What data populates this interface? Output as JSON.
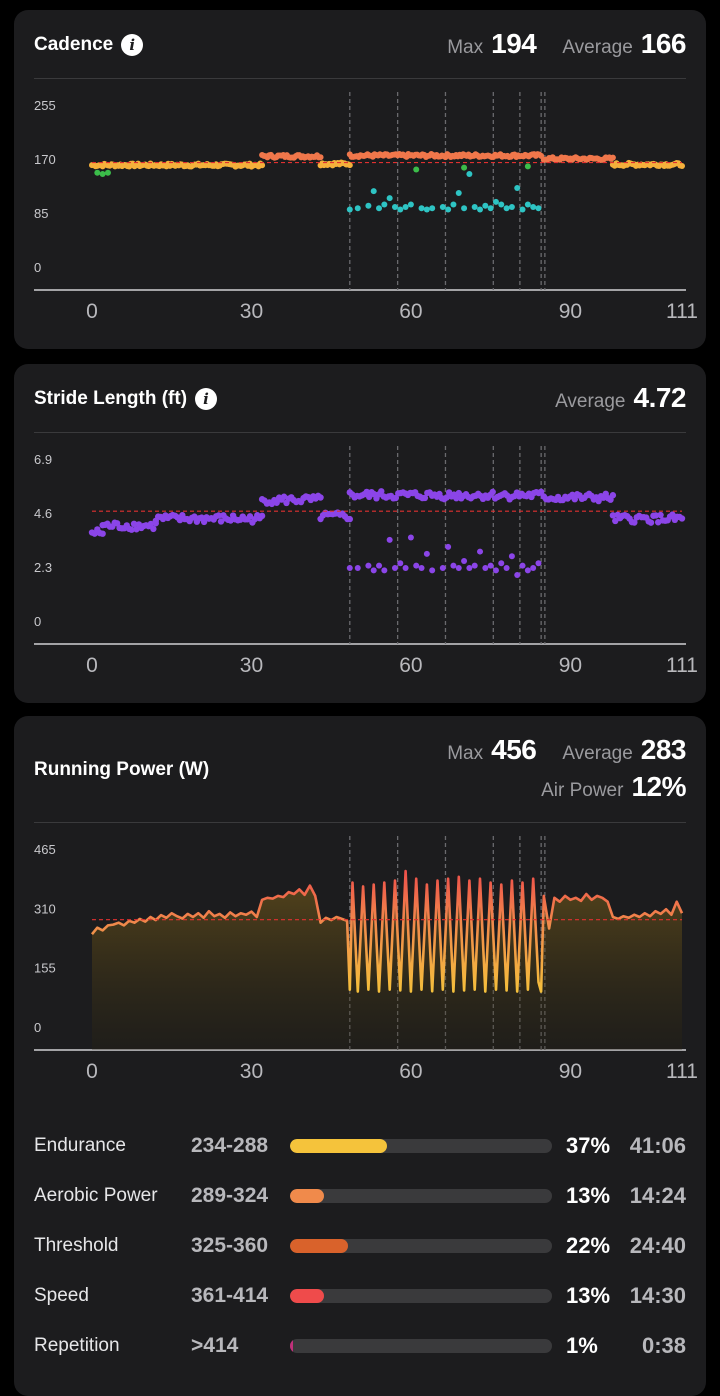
{
  "cadence": {
    "title": "Cadence",
    "stats": [
      {
        "label": "Max",
        "value": "194"
      },
      {
        "label": "Average",
        "value": "166"
      }
    ]
  },
  "stride": {
    "title": "Stride Length (ft)",
    "stats": [
      {
        "label": "Average",
        "value": "4.72"
      }
    ]
  },
  "power": {
    "title": "Running Power (W)",
    "stats": [
      {
        "label": "Max",
        "value": "456"
      },
      {
        "label": "Average",
        "value": "283"
      },
      {
        "label": "Air Power",
        "value": "12%"
      }
    ]
  },
  "zones": [
    {
      "name": "Endurance",
      "range": "234-288",
      "pct": "37%",
      "fraction": 0.37,
      "time": "41:06",
      "color": "#f5c33b"
    },
    {
      "name": "Aerobic Power",
      "range": "289-324",
      "pct": "13%",
      "fraction": 0.13,
      "time": "14:24",
      "color": "#f08a4b"
    },
    {
      "name": "Threshold",
      "range": "325-360",
      "pct": "22%",
      "fraction": 0.22,
      "time": "24:40",
      "color": "#d9622b"
    },
    {
      "name": "Speed",
      "range": "361-414",
      "pct": "13%",
      "fraction": 0.13,
      "time": "14:30",
      "color": "#ef4b4b"
    },
    {
      "name": "Repetition",
      "range": ">414",
      "pct": "1%",
      "fraction": 0.01,
      "time": "0:38",
      "color": "#c0307a"
    }
  ],
  "chart_data": [
    {
      "type": "scatter",
      "name": "cadence",
      "xlim": [
        0,
        111
      ],
      "ylim": [
        0,
        255
      ],
      "xticks": [
        "0",
        "30",
        "60",
        "90",
        "111"
      ],
      "yticks": [
        "255",
        "170",
        "85",
        "0"
      ],
      "reference_line": 166,
      "interval_markers": [
        48.5,
        57.5,
        66.5,
        75.5,
        80.5,
        84.5,
        85.2
      ],
      "colors": {
        "run": "#f5b03b",
        "fast": "#f0774b",
        "walk": "#2ec4c4",
        "low": "#3bbd4a",
        "reference": "#e03030"
      },
      "segments": [
        {
          "x": [
            0,
            32
          ],
          "y": 162,
          "kind": "run"
        },
        {
          "x": [
            32,
            43
          ],
          "y": 176,
          "kind": "fast"
        },
        {
          "x": [
            43,
            48.5
          ],
          "y": 164,
          "kind": "run"
        },
        {
          "x": [
            48.5,
            84.5
          ],
          "y": 177,
          "kind": "fast"
        },
        {
          "x": [
            85,
            98
          ],
          "y": 172,
          "kind": "fast"
        },
        {
          "x": [
            98,
            111
          ],
          "y": 163,
          "kind": "run"
        }
      ],
      "walk_points": [
        [
          48.5,
          92
        ],
        [
          50,
          94
        ],
        [
          52,
          98
        ],
        [
          53,
          121
        ],
        [
          54,
          94
        ],
        [
          55,
          100
        ],
        [
          56,
          110
        ],
        [
          57,
          96
        ],
        [
          58,
          92
        ],
        [
          59,
          96
        ],
        [
          60,
          100
        ],
        [
          62,
          94
        ],
        [
          63,
          92
        ],
        [
          64,
          94
        ],
        [
          66,
          96
        ],
        [
          67,
          92
        ],
        [
          68,
          100
        ],
        [
          69,
          118
        ],
        [
          70,
          94
        ],
        [
          71,
          148
        ],
        [
          72,
          96
        ],
        [
          73,
          92
        ],
        [
          74,
          98
        ],
        [
          75,
          94
        ],
        [
          76,
          104
        ],
        [
          77,
          100
        ],
        [
          78,
          94
        ],
        [
          79,
          96
        ],
        [
          80,
          126
        ],
        [
          81,
          92
        ],
        [
          82,
          100
        ],
        [
          83,
          96
        ],
        [
          84,
          94
        ]
      ],
      "low_points": [
        [
          1,
          150
        ],
        [
          2,
          148
        ],
        [
          3,
          150
        ],
        [
          61,
          155
        ],
        [
          70,
          158
        ],
        [
          82,
          160
        ]
      ]
    },
    {
      "type": "scatter",
      "name": "stride",
      "xlim": [
        0,
        111
      ],
      "ylim": [
        0,
        6.9
      ],
      "xticks": [
        "0",
        "30",
        "60",
        "90",
        "111"
      ],
      "yticks": [
        "6.9",
        "4.6",
        "2.3",
        "0"
      ],
      "reference_line": 4.72,
      "interval_markers": [
        48.5,
        57.5,
        66.5,
        75.5,
        80.5,
        84.5,
        85.2
      ],
      "colors": {
        "points": "#8b45e8",
        "reference": "#e03030"
      },
      "segments": [
        {
          "x": [
            0,
            2
          ],
          "y": 3.8
        },
        {
          "x": [
            2,
            12
          ],
          "y": 4.1
        },
        {
          "x": [
            12,
            32
          ],
          "y": 4.4
        },
        {
          "x": [
            32,
            43
          ],
          "y": 5.2
        },
        {
          "x": [
            43,
            48.5
          ],
          "y": 4.5
        },
        {
          "x": [
            48.5,
            84.5
          ],
          "y": 5.4
        },
        {
          "x": [
            85,
            98
          ],
          "y": 5.3
        },
        {
          "x": [
            98,
            111
          ],
          "y": 4.4
        }
      ],
      "low_points": [
        [
          48.5,
          2.3
        ],
        [
          50,
          2.3
        ],
        [
          52,
          2.4
        ],
        [
          53,
          2.2
        ],
        [
          54,
          2.4
        ],
        [
          55,
          2.2
        ],
        [
          56,
          3.5
        ],
        [
          57,
          2.3
        ],
        [
          58,
          2.5
        ],
        [
          59,
          2.3
        ],
        [
          60,
          3.6
        ],
        [
          61,
          2.4
        ],
        [
          62,
          2.3
        ],
        [
          63,
          2.9
        ],
        [
          64,
          2.2
        ],
        [
          66,
          2.3
        ],
        [
          67,
          3.2
        ],
        [
          68,
          2.4
        ],
        [
          69,
          2.3
        ],
        [
          70,
          2.6
        ],
        [
          71,
          2.3
        ],
        [
          72,
          2.4
        ],
        [
          73,
          3.0
        ],
        [
          74,
          2.3
        ],
        [
          75,
          2.4
        ],
        [
          76,
          2.2
        ],
        [
          77,
          2.5
        ],
        [
          78,
          2.3
        ],
        [
          79,
          2.8
        ],
        [
          80,
          2.0
        ],
        [
          81,
          2.4
        ],
        [
          82,
          2.2
        ],
        [
          83,
          2.3
        ],
        [
          84,
          2.5
        ]
      ]
    },
    {
      "type": "area",
      "name": "power",
      "xlim": [
        0,
        111
      ],
      "ylim": [
        0,
        465
      ],
      "xticks": [
        "0",
        "30",
        "60",
        "90",
        "111"
      ],
      "yticks": [
        "465",
        "310",
        "155",
        "0"
      ],
      "reference_line": 283,
      "interval_markers": [
        48.5,
        57.5,
        66.5,
        75.5,
        80.5,
        84.5,
        85.2
      ],
      "colors": {
        "low": "#f5c33b",
        "mid": "#f08a4b",
        "high": "#ef4b4b",
        "reference": "#e03030"
      },
      "series": [
        {
          "x": 0,
          "y": 245
        },
        {
          "x": 1,
          "y": 262
        },
        {
          "x": 2,
          "y": 255
        },
        {
          "x": 3,
          "y": 268
        },
        {
          "x": 4,
          "y": 270
        },
        {
          "x": 5,
          "y": 275
        },
        {
          "x": 6,
          "y": 268
        },
        {
          "x": 7,
          "y": 280
        },
        {
          "x": 8,
          "y": 275
        },
        {
          "x": 9,
          "y": 285
        },
        {
          "x": 10,
          "y": 278
        },
        {
          "x": 11,
          "y": 290
        },
        {
          "x": 12,
          "y": 282
        },
        {
          "x": 13,
          "y": 295
        },
        {
          "x": 14,
          "y": 288
        },
        {
          "x": 15,
          "y": 300
        },
        {
          "x": 16,
          "y": 292
        },
        {
          "x": 17,
          "y": 286
        },
        {
          "x": 18,
          "y": 298
        },
        {
          "x": 19,
          "y": 290
        },
        {
          "x": 20,
          "y": 300
        },
        {
          "x": 21,
          "y": 288
        },
        {
          "x": 22,
          "y": 305
        },
        {
          "x": 23,
          "y": 292
        },
        {
          "x": 24,
          "y": 298
        },
        {
          "x": 25,
          "y": 288
        },
        {
          "x": 26,
          "y": 302
        },
        {
          "x": 27,
          "y": 292
        },
        {
          "x": 28,
          "y": 300
        },
        {
          "x": 29,
          "y": 296
        },
        {
          "x": 30,
          "y": 304
        },
        {
          "x": 31,
          "y": 290
        },
        {
          "x": 32,
          "y": 335
        },
        {
          "x": 33,
          "y": 340
        },
        {
          "x": 34,
          "y": 338
        },
        {
          "x": 35,
          "y": 345
        },
        {
          "x": 36,
          "y": 342
        },
        {
          "x": 37,
          "y": 355
        },
        {
          "x": 38,
          "y": 350
        },
        {
          "x": 39,
          "y": 362
        },
        {
          "x": 40,
          "y": 348
        },
        {
          "x": 41,
          "y": 372
        },
        {
          "x": 42,
          "y": 345
        },
        {
          "x": 43,
          "y": 275
        },
        {
          "x": 44,
          "y": 288
        },
        {
          "x": 45,
          "y": 282
        },
        {
          "x": 46,
          "y": 290
        },
        {
          "x": 47,
          "y": 285
        },
        {
          "x": 48,
          "y": 280
        },
        {
          "x": 48.5,
          "y": 100
        },
        {
          "x": 49,
          "y": 380
        },
        {
          "x": 50,
          "y": 95
        },
        {
          "x": 51,
          "y": 370
        },
        {
          "x": 52,
          "y": 100
        },
        {
          "x": 53,
          "y": 375
        },
        {
          "x": 54,
          "y": 95
        },
        {
          "x": 55,
          "y": 380
        },
        {
          "x": 56,
          "y": 100
        },
        {
          "x": 57,
          "y": 385
        },
        {
          "x": 58,
          "y": 98
        },
        {
          "x": 59,
          "y": 410
        },
        {
          "x": 60,
          "y": 95
        },
        {
          "x": 61,
          "y": 390
        },
        {
          "x": 62,
          "y": 100
        },
        {
          "x": 63,
          "y": 375
        },
        {
          "x": 64,
          "y": 96
        },
        {
          "x": 65,
          "y": 385
        },
        {
          "x": 66,
          "y": 100
        },
        {
          "x": 67,
          "y": 390
        },
        {
          "x": 68,
          "y": 95
        },
        {
          "x": 69,
          "y": 395
        },
        {
          "x": 70,
          "y": 98
        },
        {
          "x": 71,
          "y": 385
        },
        {
          "x": 72,
          "y": 100
        },
        {
          "x": 73,
          "y": 390
        },
        {
          "x": 74,
          "y": 95
        },
        {
          "x": 75,
          "y": 380
        },
        {
          "x": 76,
          "y": 100
        },
        {
          "x": 77,
          "y": 375
        },
        {
          "x": 78,
          "y": 98
        },
        {
          "x": 79,
          "y": 385
        },
        {
          "x": 80,
          "y": 95
        },
        {
          "x": 81,
          "y": 380
        },
        {
          "x": 82,
          "y": 100
        },
        {
          "x": 83,
          "y": 390
        },
        {
          "x": 84,
          "y": 120
        },
        {
          "x": 84.5,
          "y": 95
        },
        {
          "x": 85,
          "y": 345
        },
        {
          "x": 86,
          "y": 260
        },
        {
          "x": 87,
          "y": 340
        },
        {
          "x": 88,
          "y": 330
        },
        {
          "x": 89,
          "y": 345
        },
        {
          "x": 90,
          "y": 335
        },
        {
          "x": 91,
          "y": 340
        },
        {
          "x": 92,
          "y": 332
        },
        {
          "x": 93,
          "y": 350
        },
        {
          "x": 94,
          "y": 335
        },
        {
          "x": 95,
          "y": 345
        },
        {
          "x": 96,
          "y": 340
        },
        {
          "x": 97,
          "y": 330
        },
        {
          "x": 98,
          "y": 290
        },
        {
          "x": 99,
          "y": 285
        },
        {
          "x": 100,
          "y": 292
        },
        {
          "x": 101,
          "y": 288
        },
        {
          "x": 102,
          "y": 296
        },
        {
          "x": 103,
          "y": 290
        },
        {
          "x": 104,
          "y": 300
        },
        {
          "x": 105,
          "y": 292
        },
        {
          "x": 106,
          "y": 305
        },
        {
          "x": 107,
          "y": 298
        },
        {
          "x": 108,
          "y": 310
        },
        {
          "x": 109,
          "y": 296
        },
        {
          "x": 110,
          "y": 330
        },
        {
          "x": 111,
          "y": 300
        }
      ]
    }
  ]
}
